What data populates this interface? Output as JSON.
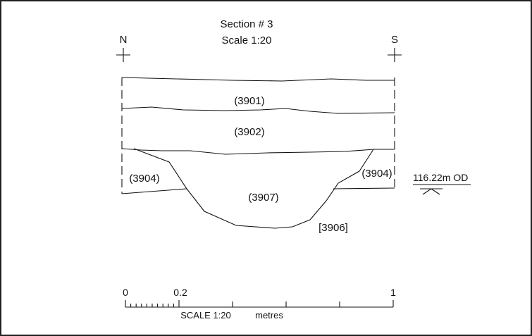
{
  "title": "Section # 3",
  "scale": "Scale 1:20",
  "north_label": "N",
  "south_label": "S",
  "contexts": {
    "c3901": "(3901)",
    "c3902": "(3902)",
    "c3904_left": "(3904)",
    "c3904_right": "(3904)",
    "c3907": "(3907)",
    "cut3906": "[3906]"
  },
  "datum": "116.22m OD",
  "scale_bar": {
    "start": "0",
    "mid": "0.2",
    "end": "1",
    "caption": "SCALE 1:20",
    "unit": "metres"
  }
}
